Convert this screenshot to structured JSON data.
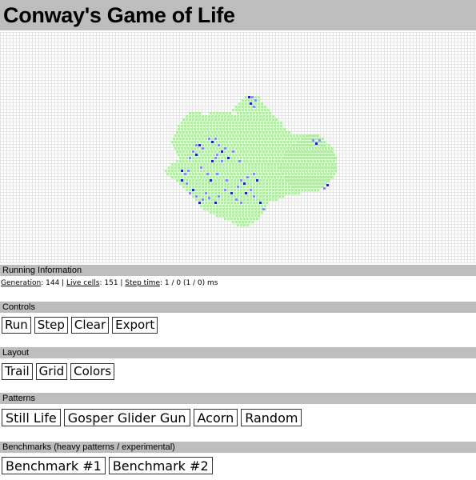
{
  "title": "Conway's Game of Life",
  "colors": {
    "header_bg": "#bdbdbd",
    "grid_line": "#e6e6e6",
    "trail_cell": "#b6eaa8",
    "live_cell_young": "#8c8ce6",
    "live_cell_old": "#2424b4"
  },
  "running_info": {
    "header": "Running Information",
    "generation_label": "Generation",
    "generation_value": ": 144 | ",
    "live_cells_label": "Live cells",
    "live_cells_value": ": 151 | ",
    "step_time_label": "Step time",
    "step_time_value": ": 1 / 0 (1 / 0) ms"
  },
  "controls": {
    "header": "Controls",
    "run": "Run",
    "step": "Step",
    "clear": "Clear",
    "export": "Export"
  },
  "layout": {
    "header": "Layout",
    "trail": "Trail",
    "grid": "Grid",
    "colors": "Colors"
  },
  "patterns": {
    "header": "Patterns",
    "still_life": "Still Life",
    "gosper": "Gosper Glider Gun",
    "acorn": "Acorn",
    "random": "Random"
  },
  "benchmarks": {
    "header": "Benchmarks (heavy patterns / experimental)",
    "b1": "Benchmark #1",
    "b2": "Benchmark #2"
  }
}
